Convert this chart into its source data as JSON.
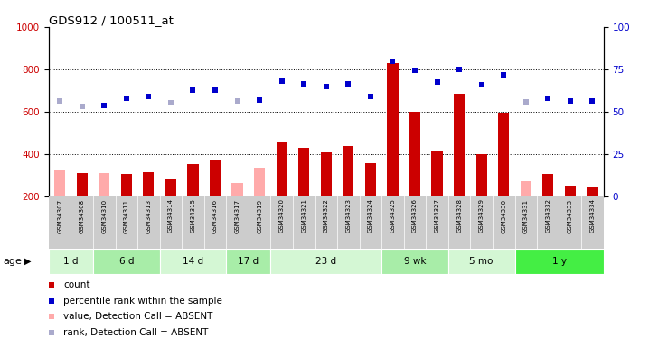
{
  "title": "GDS912 / 100511_at",
  "samples": [
    "GSM34307",
    "GSM34308",
    "GSM34310",
    "GSM34311",
    "GSM34313",
    "GSM34314",
    "GSM34315",
    "GSM34316",
    "GSM34317",
    "GSM34319",
    "GSM34320",
    "GSM34321",
    "GSM34322",
    "GSM34323",
    "GSM34324",
    "GSM34325",
    "GSM34326",
    "GSM34327",
    "GSM34328",
    "GSM34329",
    "GSM34330",
    "GSM34331",
    "GSM34332",
    "GSM34333",
    "GSM34334"
  ],
  "count_values": [
    320,
    310,
    310,
    305,
    315,
    280,
    350,
    370,
    260,
    335,
    455,
    430,
    405,
    435,
    355,
    830,
    600,
    410,
    685,
    400,
    595,
    270,
    305,
    250,
    240
  ],
  "count_absent": [
    true,
    false,
    true,
    false,
    false,
    false,
    false,
    false,
    true,
    true,
    false,
    false,
    false,
    false,
    false,
    false,
    false,
    false,
    false,
    false,
    false,
    true,
    false,
    false,
    false
  ],
  "rank_values": [
    650,
    625,
    630,
    665,
    670,
    640,
    700,
    700,
    650,
    655,
    745,
    730,
    720,
    730,
    670,
    840,
    795,
    740,
    800,
    725,
    775,
    645,
    665,
    650,
    650
  ],
  "rank_absent": [
    true,
    true,
    false,
    false,
    false,
    true,
    false,
    false,
    true,
    false,
    false,
    false,
    false,
    false,
    false,
    false,
    false,
    false,
    false,
    false,
    false,
    true,
    false,
    false,
    false
  ],
  "age_groups": [
    {
      "label": "1 d",
      "start": 0,
      "end": 2,
      "color": "#d4f7d4"
    },
    {
      "label": "6 d",
      "start": 2,
      "end": 5,
      "color": "#a8eda8"
    },
    {
      "label": "14 d",
      "start": 5,
      "end": 8,
      "color": "#d4f7d4"
    },
    {
      "label": "17 d",
      "start": 8,
      "end": 10,
      "color": "#a8eda8"
    },
    {
      "label": "23 d",
      "start": 10,
      "end": 15,
      "color": "#d4f7d4"
    },
    {
      "label": "9 wk",
      "start": 15,
      "end": 18,
      "color": "#a8eda8"
    },
    {
      "label": "5 mo",
      "start": 18,
      "end": 21,
      "color": "#d4f7d4"
    },
    {
      "label": "1 y",
      "start": 21,
      "end": 25,
      "color": "#44ee44"
    }
  ],
  "ylim_left": [
    200,
    1000
  ],
  "ylim_right": [
    0,
    100
  ],
  "yticks_left": [
    200,
    400,
    600,
    800,
    1000
  ],
  "yticks_right": [
    0,
    25,
    50,
    75,
    100
  ],
  "color_count": "#cc0000",
  "color_count_absent": "#ffaaaa",
  "color_rank": "#0000cc",
  "color_rank_absent": "#aaaacc",
  "bg_color": "#ffffff"
}
